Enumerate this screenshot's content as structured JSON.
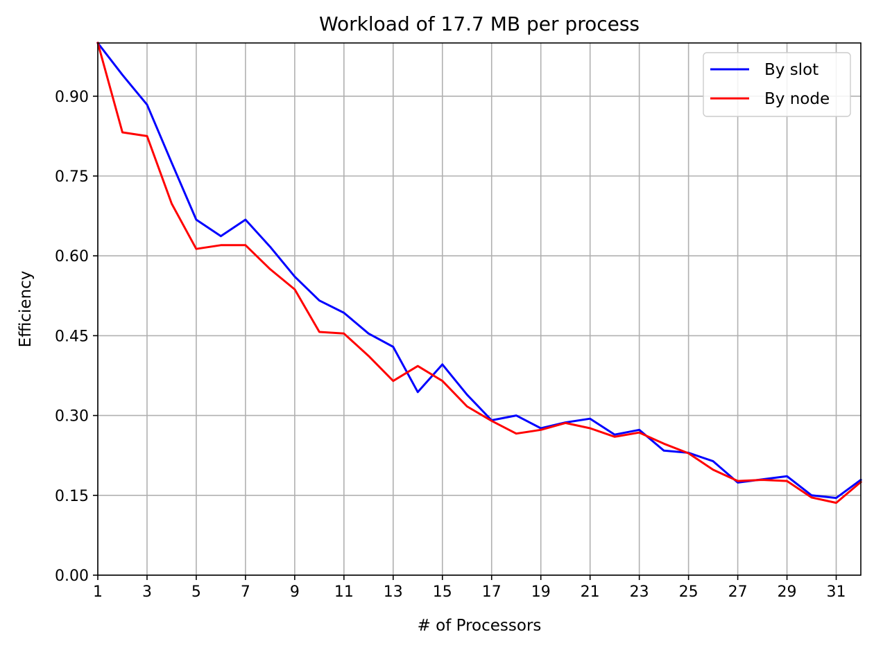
{
  "chart_data": {
    "type": "line",
    "title": "Workload of 17.7 MB per process",
    "xlabel": "# of Processors",
    "ylabel": "Efficiency",
    "xlim": [
      1,
      32
    ],
    "ylim": [
      0,
      1.0
    ],
    "xticks": [
      1,
      3,
      5,
      7,
      9,
      11,
      13,
      15,
      17,
      19,
      21,
      23,
      25,
      27,
      29,
      31
    ],
    "xtick_labels": [
      "1",
      "3",
      "5",
      "7",
      "9",
      "11",
      "13",
      "15",
      "17",
      "19",
      "21",
      "23",
      "25",
      "27",
      "29",
      "31"
    ],
    "yticks": [
      0,
      0.15,
      0.3,
      0.45,
      0.6,
      0.75,
      0.9
    ],
    "ytick_labels": [
      "0.00",
      "0.15",
      "0.30",
      "0.45",
      "0.60",
      "0.75",
      "0.90"
    ],
    "grid": true,
    "legend_position": "top-right",
    "x": [
      1,
      2,
      3,
      4,
      5,
      6,
      7,
      8,
      9,
      10,
      11,
      12,
      13,
      14,
      15,
      16,
      17,
      18,
      19,
      20,
      21,
      22,
      23,
      24,
      25,
      26,
      27,
      28,
      29,
      30,
      31,
      32
    ],
    "series": [
      {
        "name": "By slot",
        "color": "#0000ff",
        "values": [
          1.0,
          0.94,
          0.884,
          0.775,
          0.668,
          0.637,
          0.668,
          0.617,
          0.561,
          0.516,
          0.493,
          0.454,
          0.429,
          0.344,
          0.396,
          0.339,
          0.291,
          0.3,
          0.276,
          0.287,
          0.294,
          0.264,
          0.273,
          0.234,
          0.23,
          0.214,
          0.174,
          0.18,
          0.186,
          0.15,
          0.145,
          0.179
        ]
      },
      {
        "name": "By node",
        "color": "#ff0000",
        "values": [
          1.0,
          0.832,
          0.825,
          0.698,
          0.613,
          0.62,
          0.62,
          0.575,
          0.537,
          0.457,
          0.454,
          0.412,
          0.365,
          0.393,
          0.365,
          0.317,
          0.29,
          0.266,
          0.273,
          0.286,
          0.276,
          0.26,
          0.268,
          0.247,
          0.229,
          0.198,
          0.177,
          0.179,
          0.177,
          0.146,
          0.136,
          0.175
        ]
      }
    ]
  }
}
